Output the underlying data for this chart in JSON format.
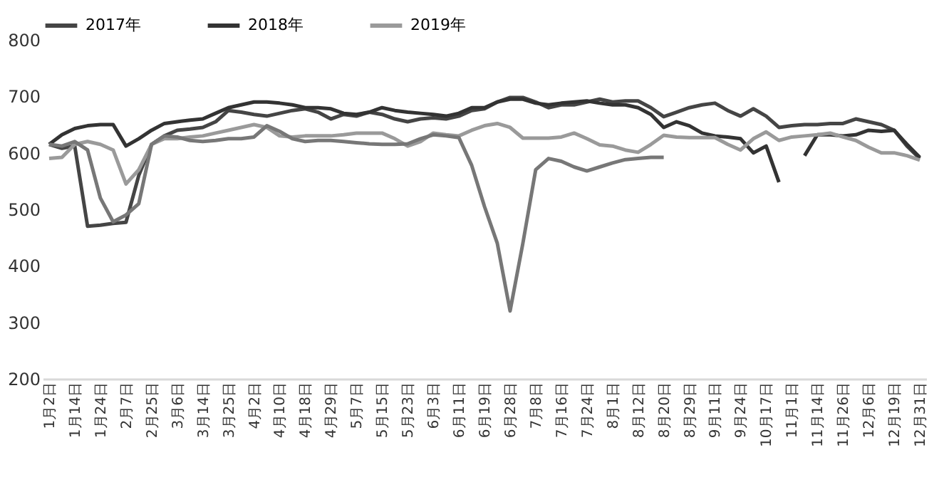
{
  "chart_data": {
    "type": "line",
    "categories": [
      "1月2日",
      null,
      "1月14日",
      null,
      "1月24日",
      null,
      "2月7日",
      null,
      "2月25日",
      null,
      "3月6日",
      null,
      "3月14日",
      null,
      "3月25日",
      null,
      "4月2日",
      null,
      "4月10日",
      null,
      "4月18日",
      null,
      "4月29日",
      null,
      "5月7日",
      null,
      "5月15日",
      null,
      "5月23日",
      null,
      "6月3日",
      null,
      "6月11日",
      null,
      "6月19日",
      null,
      "6月28日",
      null,
      "7月8日",
      null,
      "7月16日",
      null,
      "7月24日",
      null,
      "8月1日",
      null,
      "8月12日",
      null,
      "8月20日",
      null,
      "8月29日",
      null,
      "9月11日",
      null,
      "9月24日",
      null,
      "10月17日",
      null,
      "11月1日",
      null,
      "11月14日",
      null,
      "11月26日",
      null,
      "12月6日",
      null,
      "12月19日",
      null,
      "12月31日"
    ],
    "series": [
      {
        "name": "2017年",
        "color": "#454545",
        "values": [
          615,
          608,
          612,
          470,
          472,
          475,
          477,
          560,
          615,
          630,
          640,
          642,
          645,
          655,
          675,
          672,
          668,
          665,
          670,
          675,
          678,
          672,
          660,
          668,
          665,
          672,
          668,
          660,
          655,
          660,
          662,
          660,
          665,
          675,
          678,
          690,
          698,
          698,
          690,
          680,
          685,
          685,
          690,
          695,
          690,
          692,
          692,
          680,
          664,
          672,
          680,
          685,
          688,
          675,
          665,
          678,
          665,
          645,
          648,
          650,
          650,
          652,
          652,
          660,
          655,
          650,
          640,
          612,
          590
        ]
      },
      {
        "name": "2018年",
        "color": "#333333",
        "values": [
          615,
          632,
          643,
          648,
          650,
          650,
          612,
          625,
          640,
          652,
          655,
          658,
          660,
          670,
          680,
          685,
          690,
          690,
          688,
          685,
          680,
          680,
          678,
          670,
          668,
          672,
          680,
          675,
          672,
          670,
          668,
          665,
          670,
          680,
          680,
          690,
          695,
          695,
          688,
          685,
          688,
          690,
          692,
          688,
          685,
          685,
          680,
          668,
          645,
          655,
          648,
          635,
          630,
          628,
          625,
          600,
          612,
          548,
          null,
          595,
          632,
          632,
          630,
          632,
          640,
          638,
          640,
          615,
          592
        ]
      },
      {
        "name": "2019年",
        "color": "#9a9a9a",
        "values": [
          590,
          592,
          615,
          620,
          615,
          605,
          545,
          570,
          615,
          625,
          625,
          628,
          630,
          635,
          640,
          645,
          650,
          645,
          630,
          628,
          630,
          630,
          630,
          632,
          635,
          635,
          635,
          625,
          612,
          620,
          635,
          632,
          630,
          640,
          648,
          652,
          645,
          626,
          626,
          626,
          628,
          635,
          625,
          614,
          612,
          605,
          601,
          615,
          631,
          628,
          627,
          627,
          627,
          615,
          605,
          625,
          637,
          622,
          628,
          630,
          632,
          635,
          628,
          622,
          610,
          600,
          600,
          595,
          587
        ]
      },
      {
        "color": "#777777",
        "values": [
          615,
          612,
          620,
          605,
          520,
          478,
          490,
          510,
          615,
          630,
          628,
          622,
          620,
          622,
          625,
          625,
          628,
          648,
          638,
          625,
          620,
          622,
          622,
          620,
          618,
          616,
          615,
          615,
          616,
          625,
          632,
          630,
          627,
          578,
          505,
          440,
          320,
          440,
          570,
          590,
          585,
          575,
          568,
          575,
          582,
          588,
          590,
          592,
          592,
          null,
          null,
          null,
          null,
          null,
          null,
          null,
          null,
          null,
          null,
          null,
          null,
          null,
          null,
          null,
          null,
          null,
          null,
          null,
          null
        ]
      }
    ],
    "ylim": [
      200,
      800
    ],
    "yticks": [
      200,
      300,
      400,
      500,
      600,
      700,
      800
    ],
    "grid": false,
    "legend": "top",
    "line_style": "solid",
    "marker": "none"
  }
}
